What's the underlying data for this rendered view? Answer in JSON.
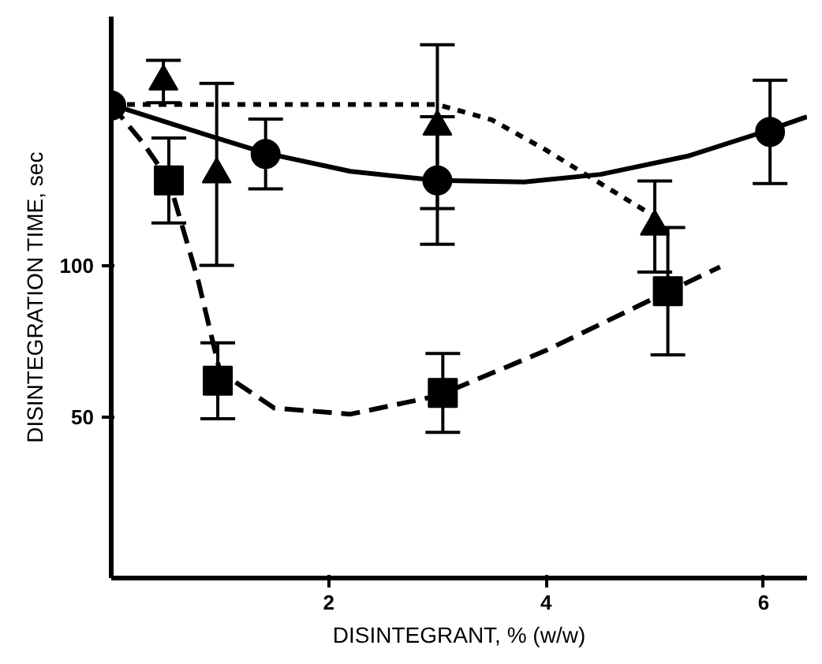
{
  "chart_data": {
    "type": "scatter",
    "xlabel": "DISINTEGRANT, % (w/w)",
    "ylabel": "DISINTEGRATION TIME, sec",
    "xlim": [
      0,
      6.4
    ],
    "ylim": [
      -3,
      182
    ],
    "xticks": [
      2,
      4,
      6
    ],
    "yticks": [
      50,
      100
    ],
    "grid": false,
    "series": [
      {
        "type": "line",
        "color": "#000000",
        "line_style": "solid",
        "x": [
          0,
          0.7,
          1.42,
          2.2,
          3,
          3.8,
          4.5,
          5.3,
          6,
          6.4
        ],
        "values": [
          153,
          145,
          137,
          131,
          128,
          127.5,
          130,
          136,
          144,
          149
        ]
      },
      {
        "type": "line",
        "color": "#000000",
        "line_style": "dotted",
        "x": [
          0,
          1,
          2,
          3,
          3.5,
          4,
          4.5,
          5.05
        ],
        "values": [
          153,
          153,
          153,
          153,
          148,
          138,
          127,
          115
        ]
      },
      {
        "type": "line",
        "color": "#000000",
        "line_style": "dashed",
        "x": [
          0,
          0.3,
          0.53,
          0.8,
          1,
          1.5,
          2.2,
          3,
          4,
          5.1,
          5.6
        ],
        "values": [
          153,
          140,
          128,
          95,
          65,
          53,
          51,
          57,
          72,
          91,
          99.5
        ]
      },
      {
        "color": "#000000",
        "marker": "circle",
        "x": [
          0,
          1.42,
          3,
          6.06
        ],
        "values": [
          152.7,
          136.7,
          128,
          144
        ],
        "errors": [
          null,
          11.5,
          21,
          17
        ]
      },
      {
        "color": "#000000",
        "marker": "triangle",
        "x": [
          0.48,
          0.97,
          3,
          5
        ],
        "values": [
          160.6,
          130,
          145.7,
          112.8
        ],
        "errors": [
          7,
          30,
          27,
          15
        ]
      },
      {
        "color": "#000000",
        "marker": "square",
        "x": [
          0.53,
          0.98,
          3.05,
          5.12
        ],
        "values": [
          128,
          62,
          58,
          91.5
        ],
        "errors": [
          14,
          12.5,
          13,
          21
        ]
      }
    ]
  }
}
